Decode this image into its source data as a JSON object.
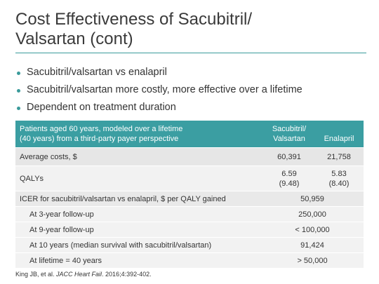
{
  "title": {
    "lines": [
      "Cost Effectiveness of Sacubitril/",
      "Valsartan (cont)"
    ]
  },
  "bullets": [
    "Sacubitril/valsartan vs enalapril",
    "Sacubitril/valsartan more costly, more effective over a lifetime",
    "Dependent on treatment duration"
  ],
  "table": {
    "header": [
      [
        "Patients aged 60 years, modeled over a lifetime",
        "(40 years) from a third-party payer perspective"
      ],
      [
        "Sacubitril/",
        "Valsartan"
      ],
      [
        "Enalapril"
      ]
    ],
    "rows": [
      [
        [
          "Average costs, $"
        ],
        [
          "60,391"
        ],
        [
          "21,758"
        ]
      ],
      [
        [
          "QALYs"
        ],
        [
          "6.59",
          "(9.48)"
        ],
        [
          "5.83",
          "(8.40)"
        ]
      ],
      [
        [
          "ICER for sacubitril/valsartan vs enalapril, $ per QALY gained"
        ],
        [
          "50,959"
        ]
      ],
      [
        [
          "At 3-year follow-up"
        ],
        [
          "250,000"
        ]
      ],
      [
        [
          "At 9-year follow-up"
        ],
        [
          "< 100,000"
        ]
      ],
      [
        [
          "At 10 years (median survival with sacubitril/valsartan)"
        ],
        [
          "91,424"
        ]
      ],
      [
        [
          "At lifetime = 40 years"
        ],
        [
          "> 50,000"
        ]
      ]
    ]
  },
  "footnote": [
    "King JB, et al. ",
    "JACC Heart Fail",
    ". 2016;4:392-402."
  ]
}
